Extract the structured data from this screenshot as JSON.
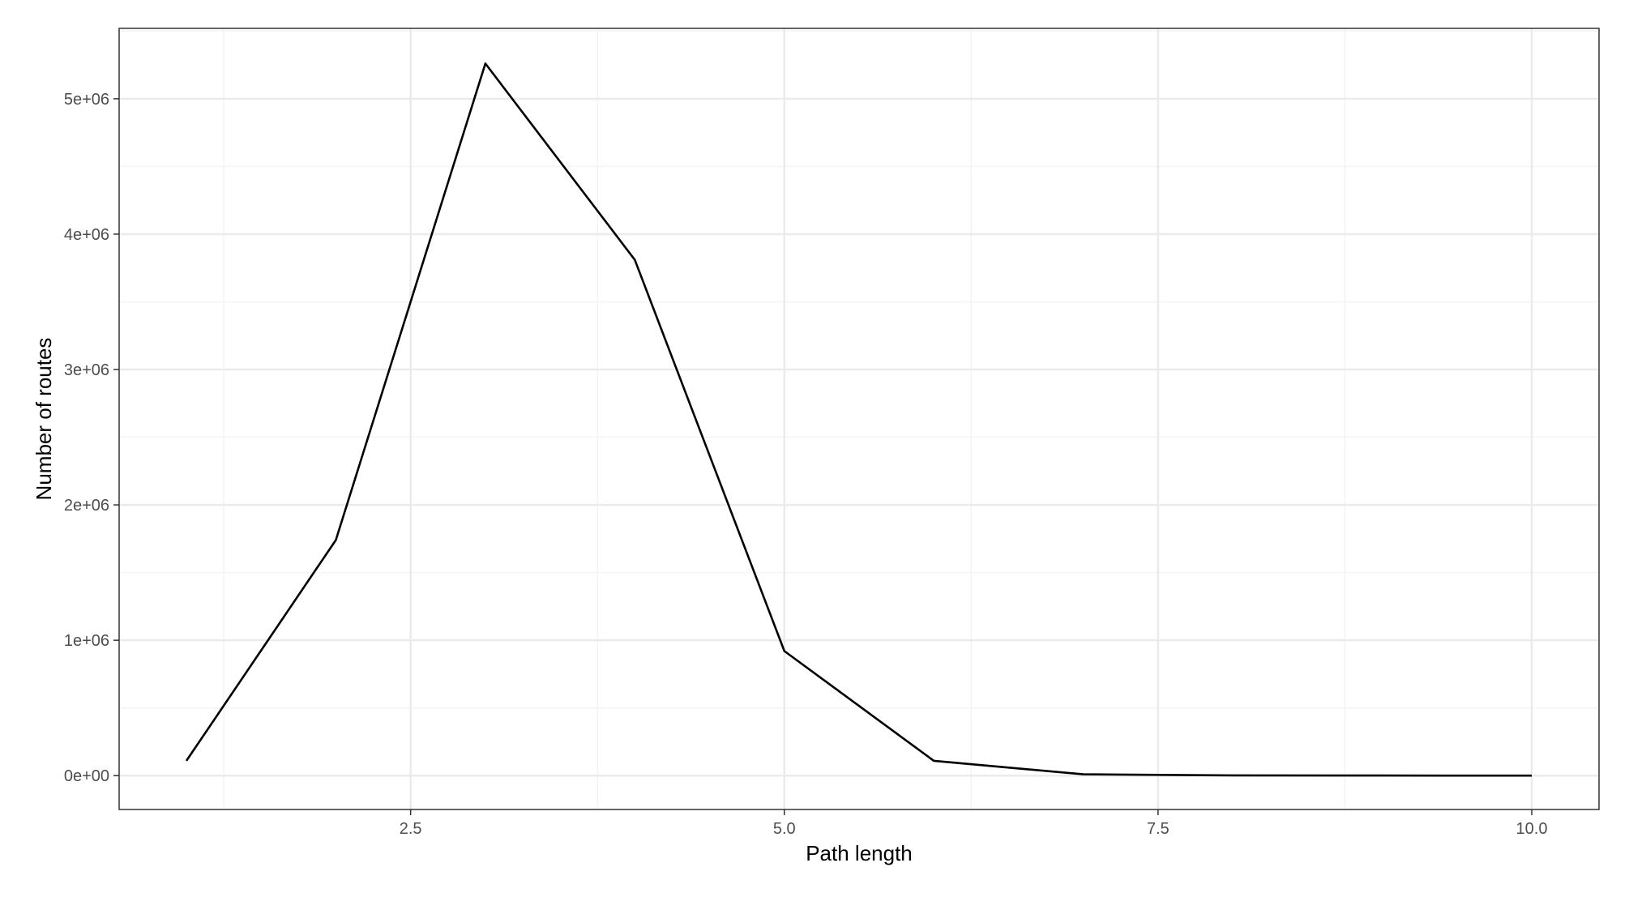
{
  "chart_data": {
    "type": "line",
    "title": "",
    "xlabel": "Path length",
    "ylabel": "Number of routes",
    "x": [
      1,
      2,
      3,
      4,
      5,
      6,
      7,
      8,
      9,
      10
    ],
    "series": [
      {
        "values": [
          110000,
          1740000,
          5260000,
          3810000,
          920000,
          110000,
          10000,
          2000,
          1000,
          0
        ]
      }
    ],
    "xlim": [
      0.55,
      10.45
    ],
    "ylim": [
      -250000,
      5520000
    ],
    "x_ticks": [
      2.5,
      5.0,
      7.5,
      10.0
    ],
    "x_tick_labels": [
      "2.5",
      "5.0",
      "7.5",
      "10.0"
    ],
    "y_ticks": [
      0,
      1000000,
      2000000,
      3000000,
      4000000,
      5000000
    ],
    "y_tick_labels": [
      "0e+00",
      "1e+06",
      "2e+06",
      "3e+06",
      "4e+06",
      "5e+06"
    ],
    "grid": true,
    "legend": "none",
    "colors": {
      "line": "#000000",
      "grid_major": "#ebebeb",
      "grid_minor": "#f4f4f4",
      "panel_border": "#333333",
      "tick_text": "#4d4d4d"
    }
  }
}
